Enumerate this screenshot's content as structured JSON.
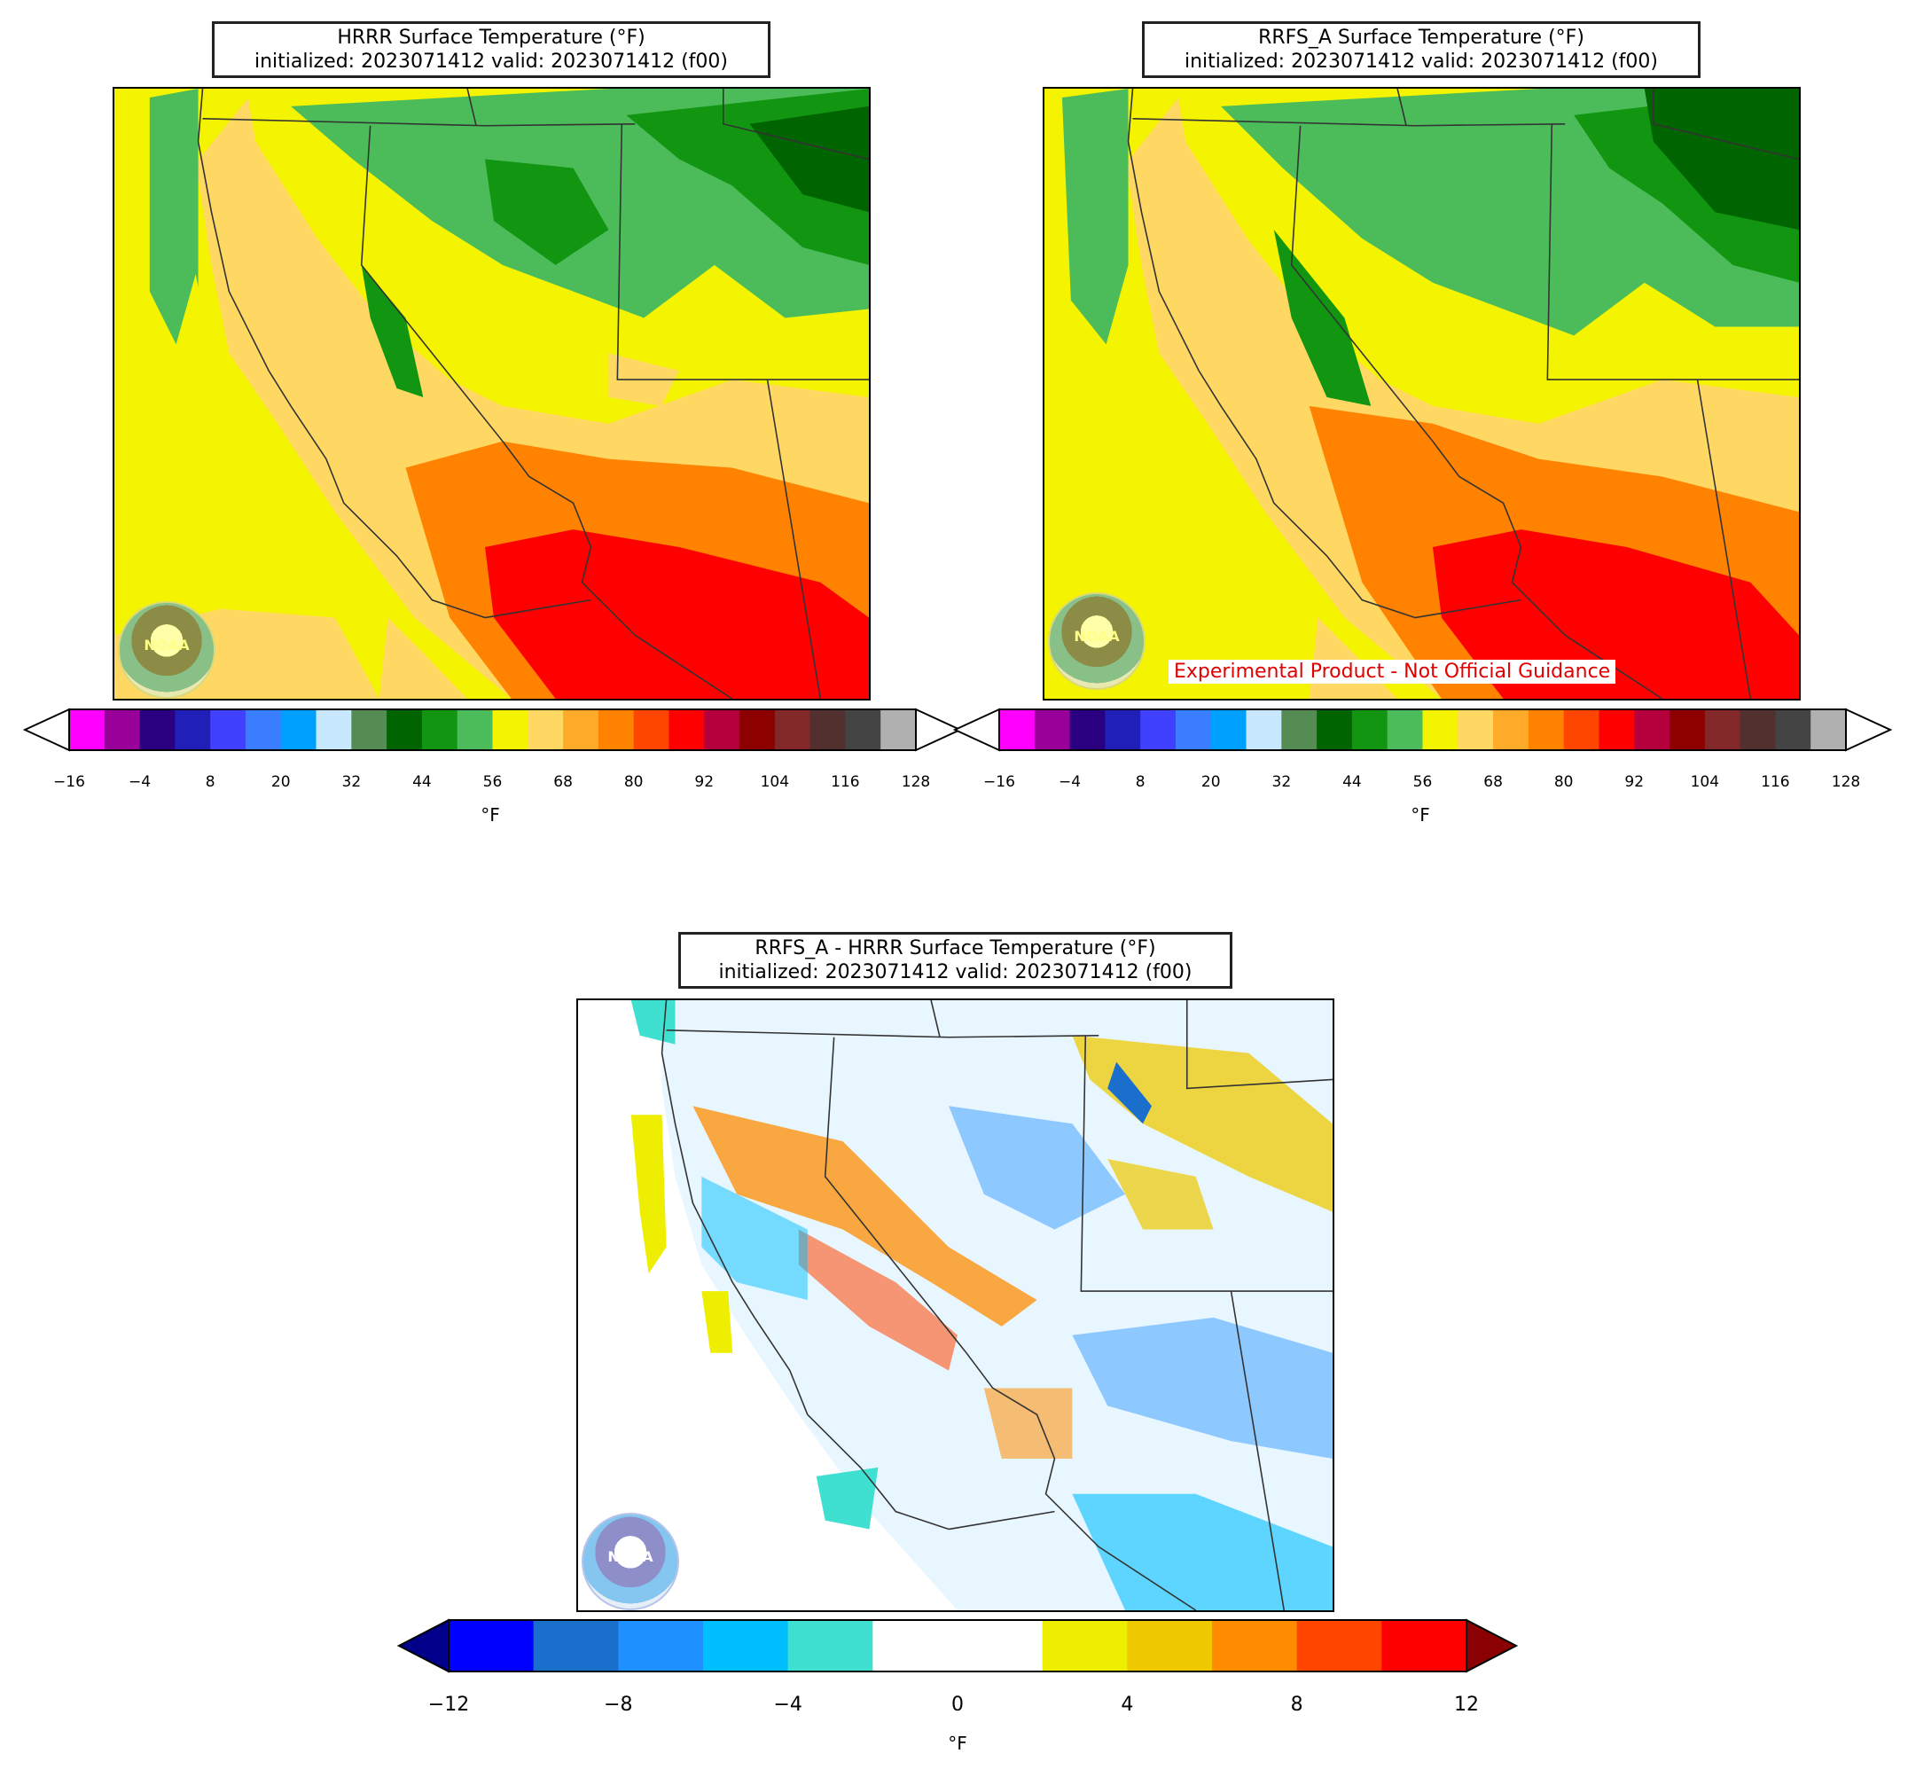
{
  "panels": {
    "hrrr": {
      "title_line1": "HRRR Surface Temperature (°F)",
      "title_line2": "initialized: 2023071412 valid: 2023071412 (f00)",
      "logo_text": "NOAA"
    },
    "rrfs": {
      "title_line1": "RRFS_A Surface Temperature (°F)",
      "title_line2": "initialized: 2023071412 valid: 2023071412 (f00)",
      "disclaimer": "Experimental Product - Not Official Guidance",
      "logo_text": "NOAA"
    },
    "diff": {
      "title_line1": "RRFS_A - HRRR Surface Temperature (°F)",
      "title_line2": "initialized: 2023071412 valid: 2023071412 (f00)",
      "logo_text": "NOAA"
    }
  },
  "temp_colorbar": {
    "unit": "°F",
    "ticks": [
      "−16",
      "−4",
      "8",
      "20",
      "32",
      "44",
      "56",
      "68",
      "80",
      "92",
      "104",
      "116",
      "128"
    ],
    "colors": [
      "#ff00ff",
      "#990099",
      "#2a0080",
      "#2020b8",
      "#4040ff",
      "#3a7dff",
      "#00a0ff",
      "#c8e8ff",
      "#548c54",
      "#006400",
      "#129612",
      "#4cbc5a",
      "#f4f400",
      "#ffd864",
      "#ffaa28",
      "#ff8200",
      "#ff4600",
      "#ff0000",
      "#b4003c",
      "#8c0000",
      "#822828",
      "#533030",
      "#444444",
      "#b0b0b0"
    ],
    "extend_low_color": "#ffffff",
    "extend_high_color": "#ffffff"
  },
  "diff_colorbar": {
    "unit": "°F",
    "ticks": [
      "−12",
      "−8",
      "−4",
      "0",
      "4",
      "8",
      "12"
    ],
    "colors": [
      "#0000ff",
      "#1a6ecc",
      "#1e90ff",
      "#00bfff",
      "#40e0d0",
      "#ffffff",
      "#ffffff",
      "#eeee00",
      "#eec900",
      "#ff8c00",
      "#ff4500",
      "#ff0000"
    ],
    "extend_low_color": "#00008b",
    "extend_high_color": "#8b0000"
  }
}
